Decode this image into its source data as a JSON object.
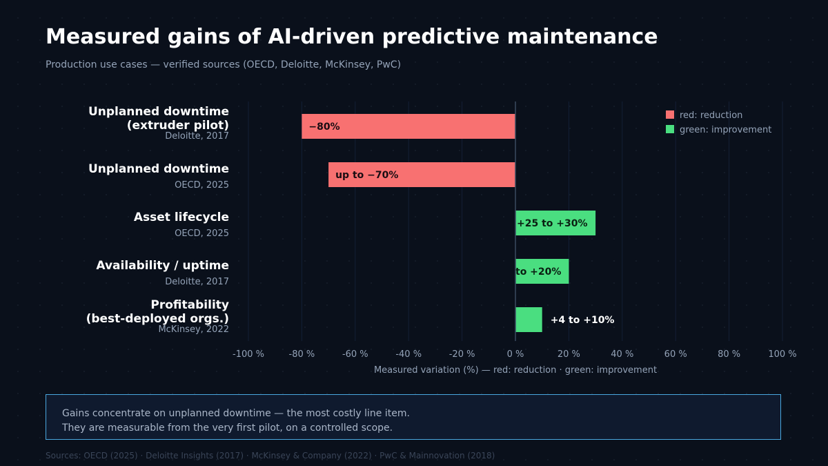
{
  "title": "Measured gains of AI-driven predictive maintenance",
  "subtitle": "Production use cases — verified sources (OECD, Deloitte, McKinsey, PwC)",
  "chart_data": {
    "type": "bar",
    "orientation": "horizontal",
    "xlabel": "Measured variation (%) — red: reduction · green: improvement",
    "xlim": [
      -100,
      100
    ],
    "x_ticks": [
      "-100 %",
      "-80 %",
      "-60 %",
      "-40 %",
      "-20 %",
      "0 %",
      "20 %",
      "40 %",
      "60 %",
      "80 %",
      "100 %"
    ],
    "x_tick_values": [
      -100,
      -80,
      -60,
      -40,
      -20,
      0,
      20,
      40,
      60,
      80,
      100
    ],
    "grid": true,
    "legend_placement": "top-right",
    "legend": [
      {
        "label": "red: reduction",
        "color": "#f87171"
      },
      {
        "label": "green: improvement",
        "color": "#4ade80"
      }
    ],
    "bars": [
      {
        "label_lines": [
          "Unplanned downtime",
          "(extruder pilot)"
        ],
        "source": "Deloitte, 2017",
        "value": -80,
        "value_label": "−80%",
        "color": "#f87171"
      },
      {
        "label_lines": [
          "Unplanned downtime"
        ],
        "source": "OECD, 2025",
        "value": -70,
        "value_label": "up to −70%",
        "color": "#f87171"
      },
      {
        "label_lines": [
          "Asset lifecycle"
        ],
        "source": "OECD, 2025",
        "value": 30,
        "value_label": "+25 to +30%",
        "color": "#4ade80"
      },
      {
        "label_lines": [
          "Availability / uptime"
        ],
        "source": "Deloitte, 2017",
        "value": 20,
        "value_label": "to +20%",
        "color": "#4ade80"
      },
      {
        "label_lines": [
          "Profitability",
          "(best-deployed orgs.)"
        ],
        "source": "McKinsey, 2022",
        "value": 10,
        "value_label": "+4 to +10%",
        "color": "#4ade80"
      }
    ]
  },
  "callout": {
    "line1": "Gains concentrate on unplanned downtime — the most costly line item.",
    "line2": "They are measurable from the very first pilot, on a controlled scope."
  },
  "sources": "Sources: OECD (2025) · Deloitte Insights (2017) · McKinsey & Company (2022) · PwC & Mainnovation (2018)"
}
